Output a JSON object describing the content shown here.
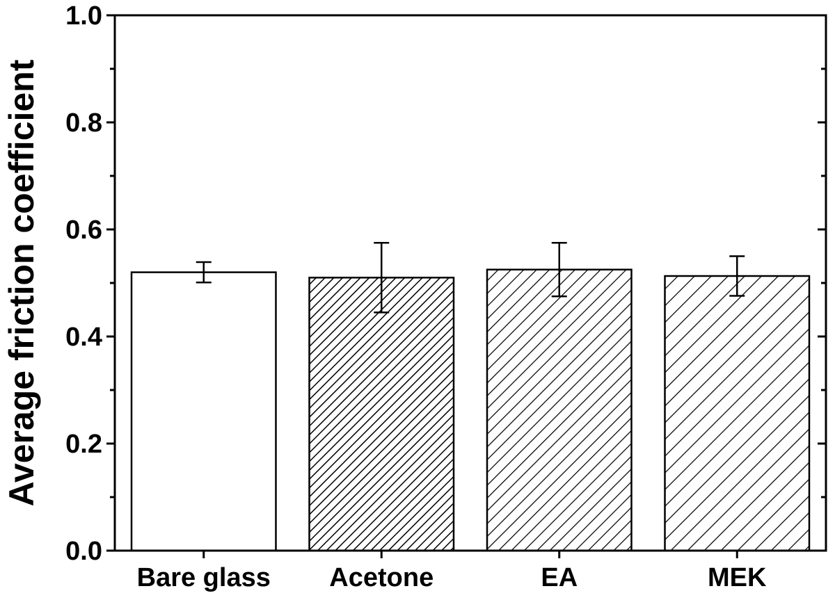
{
  "chart_data": {
    "type": "bar",
    "title": "",
    "xlabel": "",
    "ylabel": "Average friction coefficient",
    "ylim": [
      0.0,
      1.0
    ],
    "yticks": [
      "0.0",
      "0.2",
      "0.4",
      "0.6",
      "0.8",
      "1.0"
    ],
    "yticks_values": [
      0.0,
      0.2,
      0.4,
      0.6,
      0.8,
      1.0
    ],
    "grid": false,
    "categories": [
      "Bare glass",
      "Acetone",
      "EA",
      "MEK"
    ],
    "values": [
      0.52,
      0.51,
      0.525,
      0.513
    ],
    "errors": [
      0.019,
      0.065,
      0.05,
      0.037
    ],
    "patterns": [
      "none",
      "dense-diagonal",
      "medium-diagonal",
      "sparse-diagonal"
    ],
    "colors": {
      "bar_fill": "#ffffff",
      "stroke": "#000000"
    }
  }
}
